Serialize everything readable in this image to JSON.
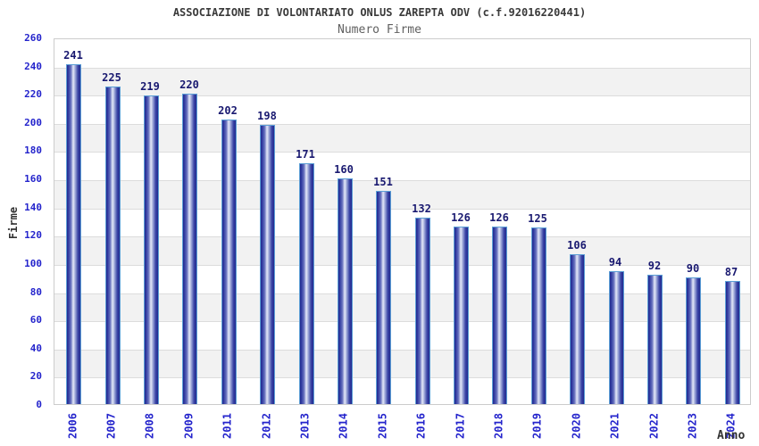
{
  "header": {
    "title": "ASSOCIAZIONE DI VOLONTARIATO ONLUS ZAREPTA ODV (c.f.92016220441)",
    "subtitle": "Numero Firme"
  },
  "chart_data": {
    "type": "bar",
    "title": "ASSOCIAZIONE DI VOLONTARIATO ONLUS ZAREPTA ODV (c.f.92016220441)",
    "subtitle": "Numero Firme",
    "xlabel": "Anno",
    "ylabel": "Firme",
    "categories": [
      "2006",
      "2007",
      "2008",
      "2009",
      "2011",
      "2012",
      "2013",
      "2014",
      "2015",
      "2016",
      "2017",
      "2018",
      "2019",
      "2020",
      "2021",
      "2022",
      "2023",
      "2024"
    ],
    "values": [
      241,
      225,
      219,
      220,
      202,
      198,
      171,
      160,
      151,
      132,
      126,
      126,
      125,
      106,
      94,
      92,
      90,
      87
    ],
    "ylim": [
      0,
      260
    ],
    "ytick_step": 20,
    "yticks": [
      0,
      20,
      40,
      60,
      80,
      100,
      120,
      140,
      160,
      180,
      200,
      220,
      240,
      260
    ],
    "grid": "horizontal-alternating-bands",
    "legend": "none",
    "bar_labels": true,
    "colors": {
      "bar_dark": "#23238f",
      "bar_light": "#e6eaf9",
      "bar_outline": "#5c9fd6",
      "axis_tick_label": "#2424cc",
      "value_label": "#191970",
      "band_alternate": "#f2f2f2",
      "plot_border": "#cccccc",
      "title_text": "#3a3a3a",
      "subtitle_text": "#606060",
      "axis_title_text": "#333333"
    }
  }
}
